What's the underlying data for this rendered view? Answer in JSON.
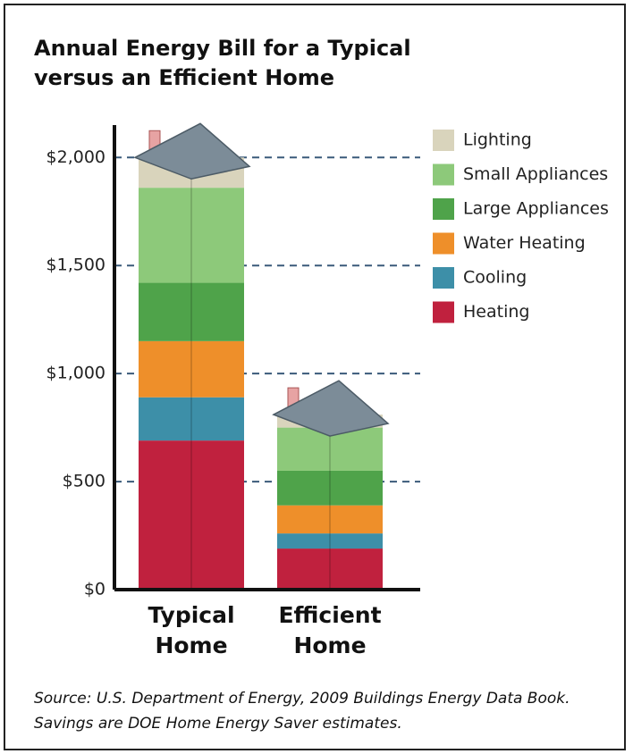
{
  "chart_data": {
    "type": "stacked_bar",
    "title": "Annual Energy Bill for a Typical versus an Efficient Home",
    "categories": [
      "Typical Home",
      "Efficient Home"
    ],
    "series": [
      {
        "name": "Heating",
        "color": "#c0213e",
        "values": [
          690,
          190
        ]
      },
      {
        "name": "Cooling",
        "color": "#3d8fa8",
        "values": [
          200,
          70
        ]
      },
      {
        "name": "Water Heating",
        "color": "#ee8f2a",
        "values": [
          260,
          130
        ]
      },
      {
        "name": "Large Appliances",
        "color": "#4fa34a",
        "values": [
          270,
          160
        ]
      },
      {
        "name": "Small Appliances",
        "color": "#8dc97a",
        "values": [
          440,
          200
        ]
      },
      {
        "name": "Lighting",
        "color": "#d9d4bc",
        "values": [
          140,
          60
        ]
      }
    ],
    "ylim": [
      0,
      2150
    ],
    "yticks": [
      {
        "value": 0,
        "label": "$0"
      },
      {
        "value": 500,
        "label": "$500"
      },
      {
        "value": 1000,
        "label": "$1,000"
      },
      {
        "value": 1500,
        "label": "$1,500"
      },
      {
        "value": 2000,
        "label": "$2,000"
      }
    ],
    "grid": true,
    "legend": "top-right",
    "annotation": "Source: U.S. Department of Energy, 2009 Buildings Energy Data Book. Savings are DOE Home Energy Saver estimates."
  }
}
